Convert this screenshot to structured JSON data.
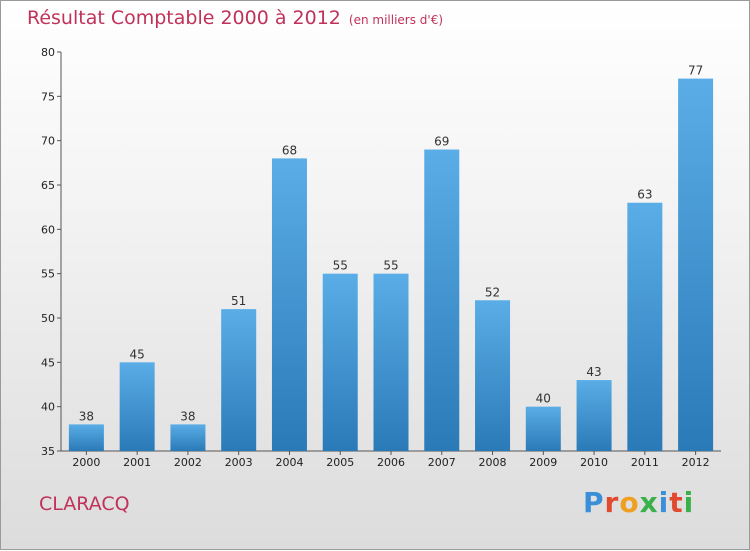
{
  "header": {
    "title": "Résultat Comptable 2000 à 2012",
    "subtitle": "(en milliers d'€)"
  },
  "footer": {
    "commune": "CLARACQ",
    "logo": "Proxiti",
    "logo_letters": [
      "P",
      "r",
      "o",
      "x",
      "i",
      "t",
      "i"
    ],
    "logo_colors": [
      "#3a8fd8",
      "#e04a2e",
      "#f0a020",
      "#3ab04a",
      "#3a8fd8",
      "#e04a2e",
      "#3ab04a"
    ]
  },
  "colors": {
    "bar_light": "#5aade6",
    "bar_dark": "#2a7ab8",
    "title": "#c0325a"
  },
  "chart_data": {
    "type": "bar",
    "title": "Résultat Comptable 2000 à 2012",
    "subtitle": "(en milliers d'€)",
    "categories": [
      "2000",
      "2001",
      "2002",
      "2003",
      "2004",
      "2005",
      "2006",
      "2007",
      "2008",
      "2009",
      "2010",
      "2011",
      "2012"
    ],
    "values": [
      38,
      45,
      38,
      51,
      68,
      55,
      55,
      69,
      52,
      40,
      43,
      63,
      77
    ],
    "ylim": [
      35,
      80
    ],
    "yticks": [
      35,
      40,
      45,
      50,
      55,
      60,
      65,
      70,
      75,
      80
    ],
    "xlabel": "",
    "ylabel": "",
    "grid": false
  }
}
